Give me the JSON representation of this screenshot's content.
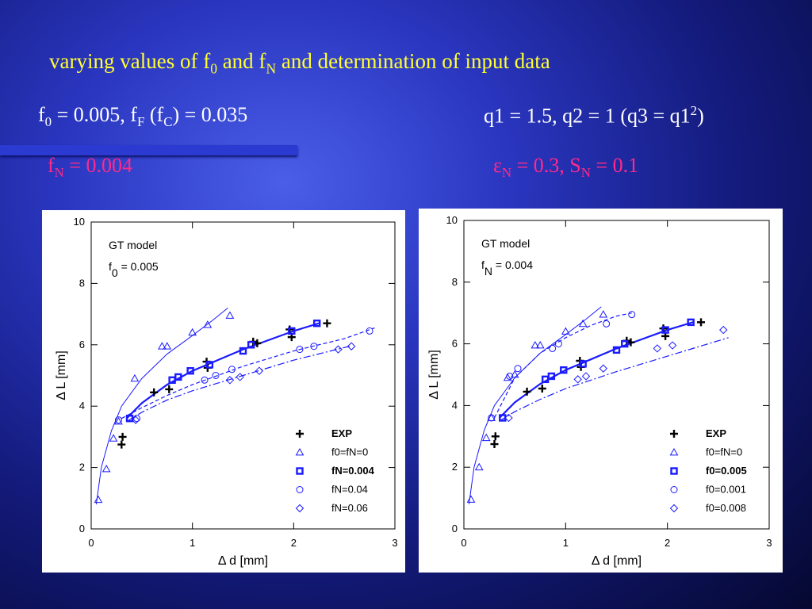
{
  "slide": {
    "title": [
      "varying values of f",
      "0",
      " and f",
      "N",
      "  and determination of input data"
    ],
    "left_line_1": [
      "f",
      "0",
      " = 0.005, f",
      "F",
      " (f",
      "C",
      ") = 0.035"
    ],
    "right_line_1": [
      "q1 = 1.5, q2 = 1 (q3 = q1",
      "2",
      ")"
    ],
    "left_line_2": [
      "f",
      "N",
      " = 0.004"
    ],
    "right_line_2": [
      "ε",
      "N",
      " = 0.3, S",
      "N",
      " = 0.1"
    ]
  },
  "chart_data": [
    {
      "type": "scatter",
      "x_label": "Δ d [mm]",
      "y_label": "Δ L [mm]",
      "xlim": [
        0,
        3
      ],
      "ylim": [
        0,
        10
      ],
      "xticks": [
        0,
        1,
        2,
        3
      ],
      "yticks": [
        0,
        2,
        4,
        6,
        8,
        10
      ],
      "legend": "lower right",
      "annotations": [
        [
          "GT model"
        ],
        [
          "f",
          "0",
          " = 0.005"
        ]
      ],
      "series": [
        {
          "name": "EXP",
          "marker": "plus",
          "color": "#000000",
          "emphasis": true,
          "x": [
            0.3,
            0.31,
            0.62,
            0.77,
            1.14,
            1.15,
            1.6,
            1.64,
            1.96,
            1.98,
            2.33
          ],
          "values": [
            2.75,
            3.0,
            4.45,
            4.55,
            5.45,
            5.25,
            6.1,
            6.05,
            6.5,
            6.25,
            6.7
          ]
        },
        {
          "name": "f0=fN=0",
          "marker": "triangle",
          "color": "#1a1aff",
          "x": [
            0.07,
            0.15,
            0.22,
            0.27,
            0.43,
            0.7,
            0.75,
            1.0,
            1.15,
            1.37
          ],
          "values": [
            0.95,
            1.95,
            2.95,
            3.5,
            4.9,
            5.95,
            5.95,
            6.4,
            6.65,
            6.95
          ]
        },
        {
          "name": "fN=0.004",
          "marker": "square",
          "color": "#1a1aff",
          "emphasis": true,
          "x": [
            0.38,
            0.8,
            0.86,
            0.98,
            1.17,
            1.5,
            1.58,
            1.98,
            2.23
          ],
          "values": [
            3.6,
            4.85,
            4.95,
            5.15,
            5.35,
            5.8,
            6.0,
            6.45,
            6.7
          ]
        },
        {
          "name": "fN=0.04",
          "marker": "circle",
          "color": "#1a1aff",
          "x": [
            0.27,
            0.45,
            1.12,
            1.23,
            1.39,
            2.06,
            2.2,
            2.75
          ],
          "values": [
            3.55,
            3.6,
            4.85,
            5.0,
            5.2,
            5.85,
            5.95,
            6.45
          ]
        },
        {
          "name": "fN=0.06",
          "marker": "diamond",
          "color": "#1a1aff",
          "x": [
            0.44,
            1.37,
            1.47,
            1.66,
            2.44,
            2.57
          ],
          "values": [
            3.55,
            4.85,
            4.95,
            5.15,
            5.85,
            5.95
          ]
        }
      ],
      "curves": [
        {
          "style": "solid",
          "color": "#1a1aff",
          "x": [
            0.05,
            0.1,
            0.2,
            0.3,
            0.5,
            0.75,
            1.0,
            1.2,
            1.35
          ],
          "values": [
            0.8,
            2.0,
            3.2,
            4.0,
            4.9,
            5.7,
            6.3,
            6.8,
            7.2
          ]
        },
        {
          "style": "bold",
          "color": "#1a1aff",
          "x": [
            0.35,
            0.5,
            0.75,
            1.0,
            1.25,
            1.5,
            1.75,
            2.0,
            2.25
          ],
          "values": [
            3.6,
            4.1,
            4.7,
            5.15,
            5.5,
            5.85,
            6.15,
            6.45,
            6.7
          ]
        },
        {
          "style": "dashed",
          "color": "#1a1aff",
          "x": [
            0.3,
            0.5,
            0.75,
            1.0,
            1.5,
            2.0,
            2.5,
            2.8
          ],
          "values": [
            3.6,
            3.95,
            4.35,
            4.7,
            5.3,
            5.8,
            6.2,
            6.55
          ]
        },
        {
          "style": "dashdot",
          "color": "#1a1aff",
          "x": [
            0.35,
            0.5,
            0.75,
            1.0,
            1.5,
            2.0,
            2.55
          ],
          "values": [
            3.5,
            3.8,
            4.2,
            4.5,
            5.0,
            5.5,
            5.95
          ]
        }
      ]
    },
    {
      "type": "scatter",
      "x_label": "Δ d [mm]",
      "y_label": "Δ L [mm]",
      "xlim": [
        0,
        3
      ],
      "ylim": [
        0,
        10
      ],
      "xticks": [
        0,
        1,
        2,
        3
      ],
      "yticks": [
        0,
        2,
        4,
        6,
        8,
        10
      ],
      "legend": "lower right",
      "annotations": [
        [
          "GT model"
        ],
        [
          "f",
          "N",
          " = 0.004"
        ]
      ],
      "series": [
        {
          "name": "EXP",
          "marker": "plus",
          "color": "#000000",
          "emphasis": true,
          "x": [
            0.3,
            0.31,
            0.62,
            0.77,
            1.14,
            1.15,
            1.6,
            1.64,
            1.96,
            1.98,
            2.33
          ],
          "values": [
            2.75,
            3.0,
            4.45,
            4.55,
            5.45,
            5.25,
            6.1,
            6.05,
            6.5,
            6.25,
            6.7
          ]
        },
        {
          "name": "f0=fN=0",
          "marker": "triangle",
          "color": "#1a1aff",
          "x": [
            0.07,
            0.15,
            0.22,
            0.27,
            0.43,
            0.5,
            0.7,
            0.75,
            1.0,
            1.17,
            1.37
          ],
          "values": [
            0.95,
            2.0,
            2.95,
            3.6,
            4.9,
            5.0,
            5.95,
            5.95,
            6.4,
            6.65,
            6.95
          ]
        },
        {
          "name": "f0=0.005",
          "marker": "square",
          "color": "#1a1aff",
          "emphasis": true,
          "x": [
            0.38,
            0.8,
            0.86,
            0.98,
            1.17,
            1.5,
            1.58,
            1.98,
            2.23
          ],
          "values": [
            3.6,
            4.85,
            4.95,
            5.15,
            5.35,
            5.8,
            6.0,
            6.45,
            6.7
          ]
        },
        {
          "name": "f0=0.001",
          "marker": "circle",
          "color": "#1a1aff",
          "x": [
            0.27,
            0.45,
            0.53,
            0.87,
            0.93,
            1.4,
            1.65
          ],
          "values": [
            3.6,
            4.95,
            5.2,
            5.85,
            6.0,
            6.65,
            6.95
          ]
        },
        {
          "name": "f0=0.008",
          "marker": "diamond",
          "color": "#1a1aff",
          "x": [
            0.44,
            1.12,
            1.2,
            1.37,
            1.9,
            2.05,
            2.55
          ],
          "values": [
            3.6,
            4.85,
            4.95,
            5.2,
            5.85,
            5.95,
            6.45
          ]
        }
      ],
      "curves": [
        {
          "style": "solid",
          "color": "#1a1aff",
          "x": [
            0.05,
            0.1,
            0.2,
            0.3,
            0.5,
            0.75,
            1.0,
            1.2,
            1.35
          ],
          "values": [
            0.8,
            2.0,
            3.2,
            4.0,
            4.9,
            5.7,
            6.3,
            6.8,
            7.2
          ]
        },
        {
          "style": "dashed",
          "color": "#1a1aff",
          "x": [
            0.3,
            0.5,
            0.75,
            1.0,
            1.25,
            1.5,
            1.65
          ],
          "values": [
            3.6,
            4.9,
            5.7,
            6.2,
            6.6,
            6.9,
            7.0
          ]
        },
        {
          "style": "bold",
          "color": "#1a1aff",
          "x": [
            0.35,
            0.5,
            0.75,
            1.0,
            1.25,
            1.5,
            1.75,
            2.0,
            2.25
          ],
          "values": [
            3.6,
            4.1,
            4.7,
            5.15,
            5.5,
            5.85,
            6.15,
            6.45,
            6.7
          ]
        },
        {
          "style": "dashdot",
          "color": "#1a1aff",
          "x": [
            0.35,
            0.5,
            0.75,
            1.0,
            1.5,
            2.0,
            2.6
          ],
          "values": [
            3.5,
            3.8,
            4.2,
            4.55,
            5.1,
            5.6,
            6.2
          ]
        }
      ]
    }
  ]
}
